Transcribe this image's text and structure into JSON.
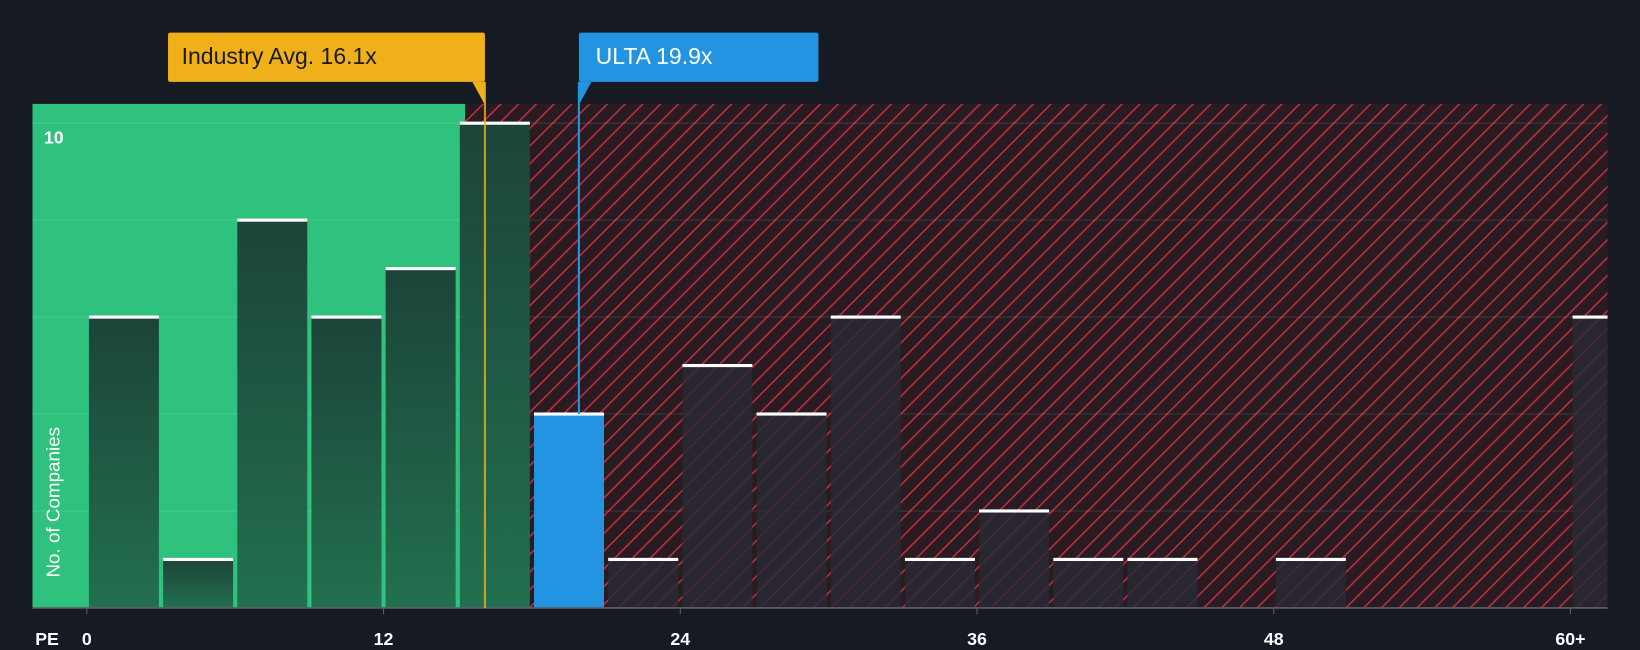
{
  "chart_data": {
    "type": "histogram",
    "x_label": "PE",
    "y_label": "No. of Companies",
    "bins": [
      0,
      3,
      6,
      9,
      12,
      15,
      18,
      21,
      24,
      27,
      30,
      33,
      36,
      39,
      42,
      45,
      48,
      51,
      54,
      57,
      60,
      63
    ],
    "values": [
      6,
      1,
      8,
      6,
      7,
      10,
      4,
      1,
      5,
      4,
      6,
      1,
      2,
      1,
      1,
      0,
      1,
      0,
      0,
      0,
      6
    ],
    "xlim": [
      -2.2,
      61.5
    ],
    "ylim": [
      0,
      10.4
    ],
    "xticks": [
      0,
      12,
      24,
      36,
      48,
      {
        "value": 60,
        "label": "60+"
      }
    ],
    "yticks": [
      10
    ],
    "gridlines": [
      2,
      4,
      6,
      8,
      10
    ],
    "grid": true,
    "annotations": [
      {
        "label": "Industry Avg. 16.1x",
        "x": 16.1,
        "color": "#f0b01a"
      },
      {
        "label": "ULTA 19.9x",
        "x": 19.9,
        "color": "#2394e2"
      }
    ]
  }
}
